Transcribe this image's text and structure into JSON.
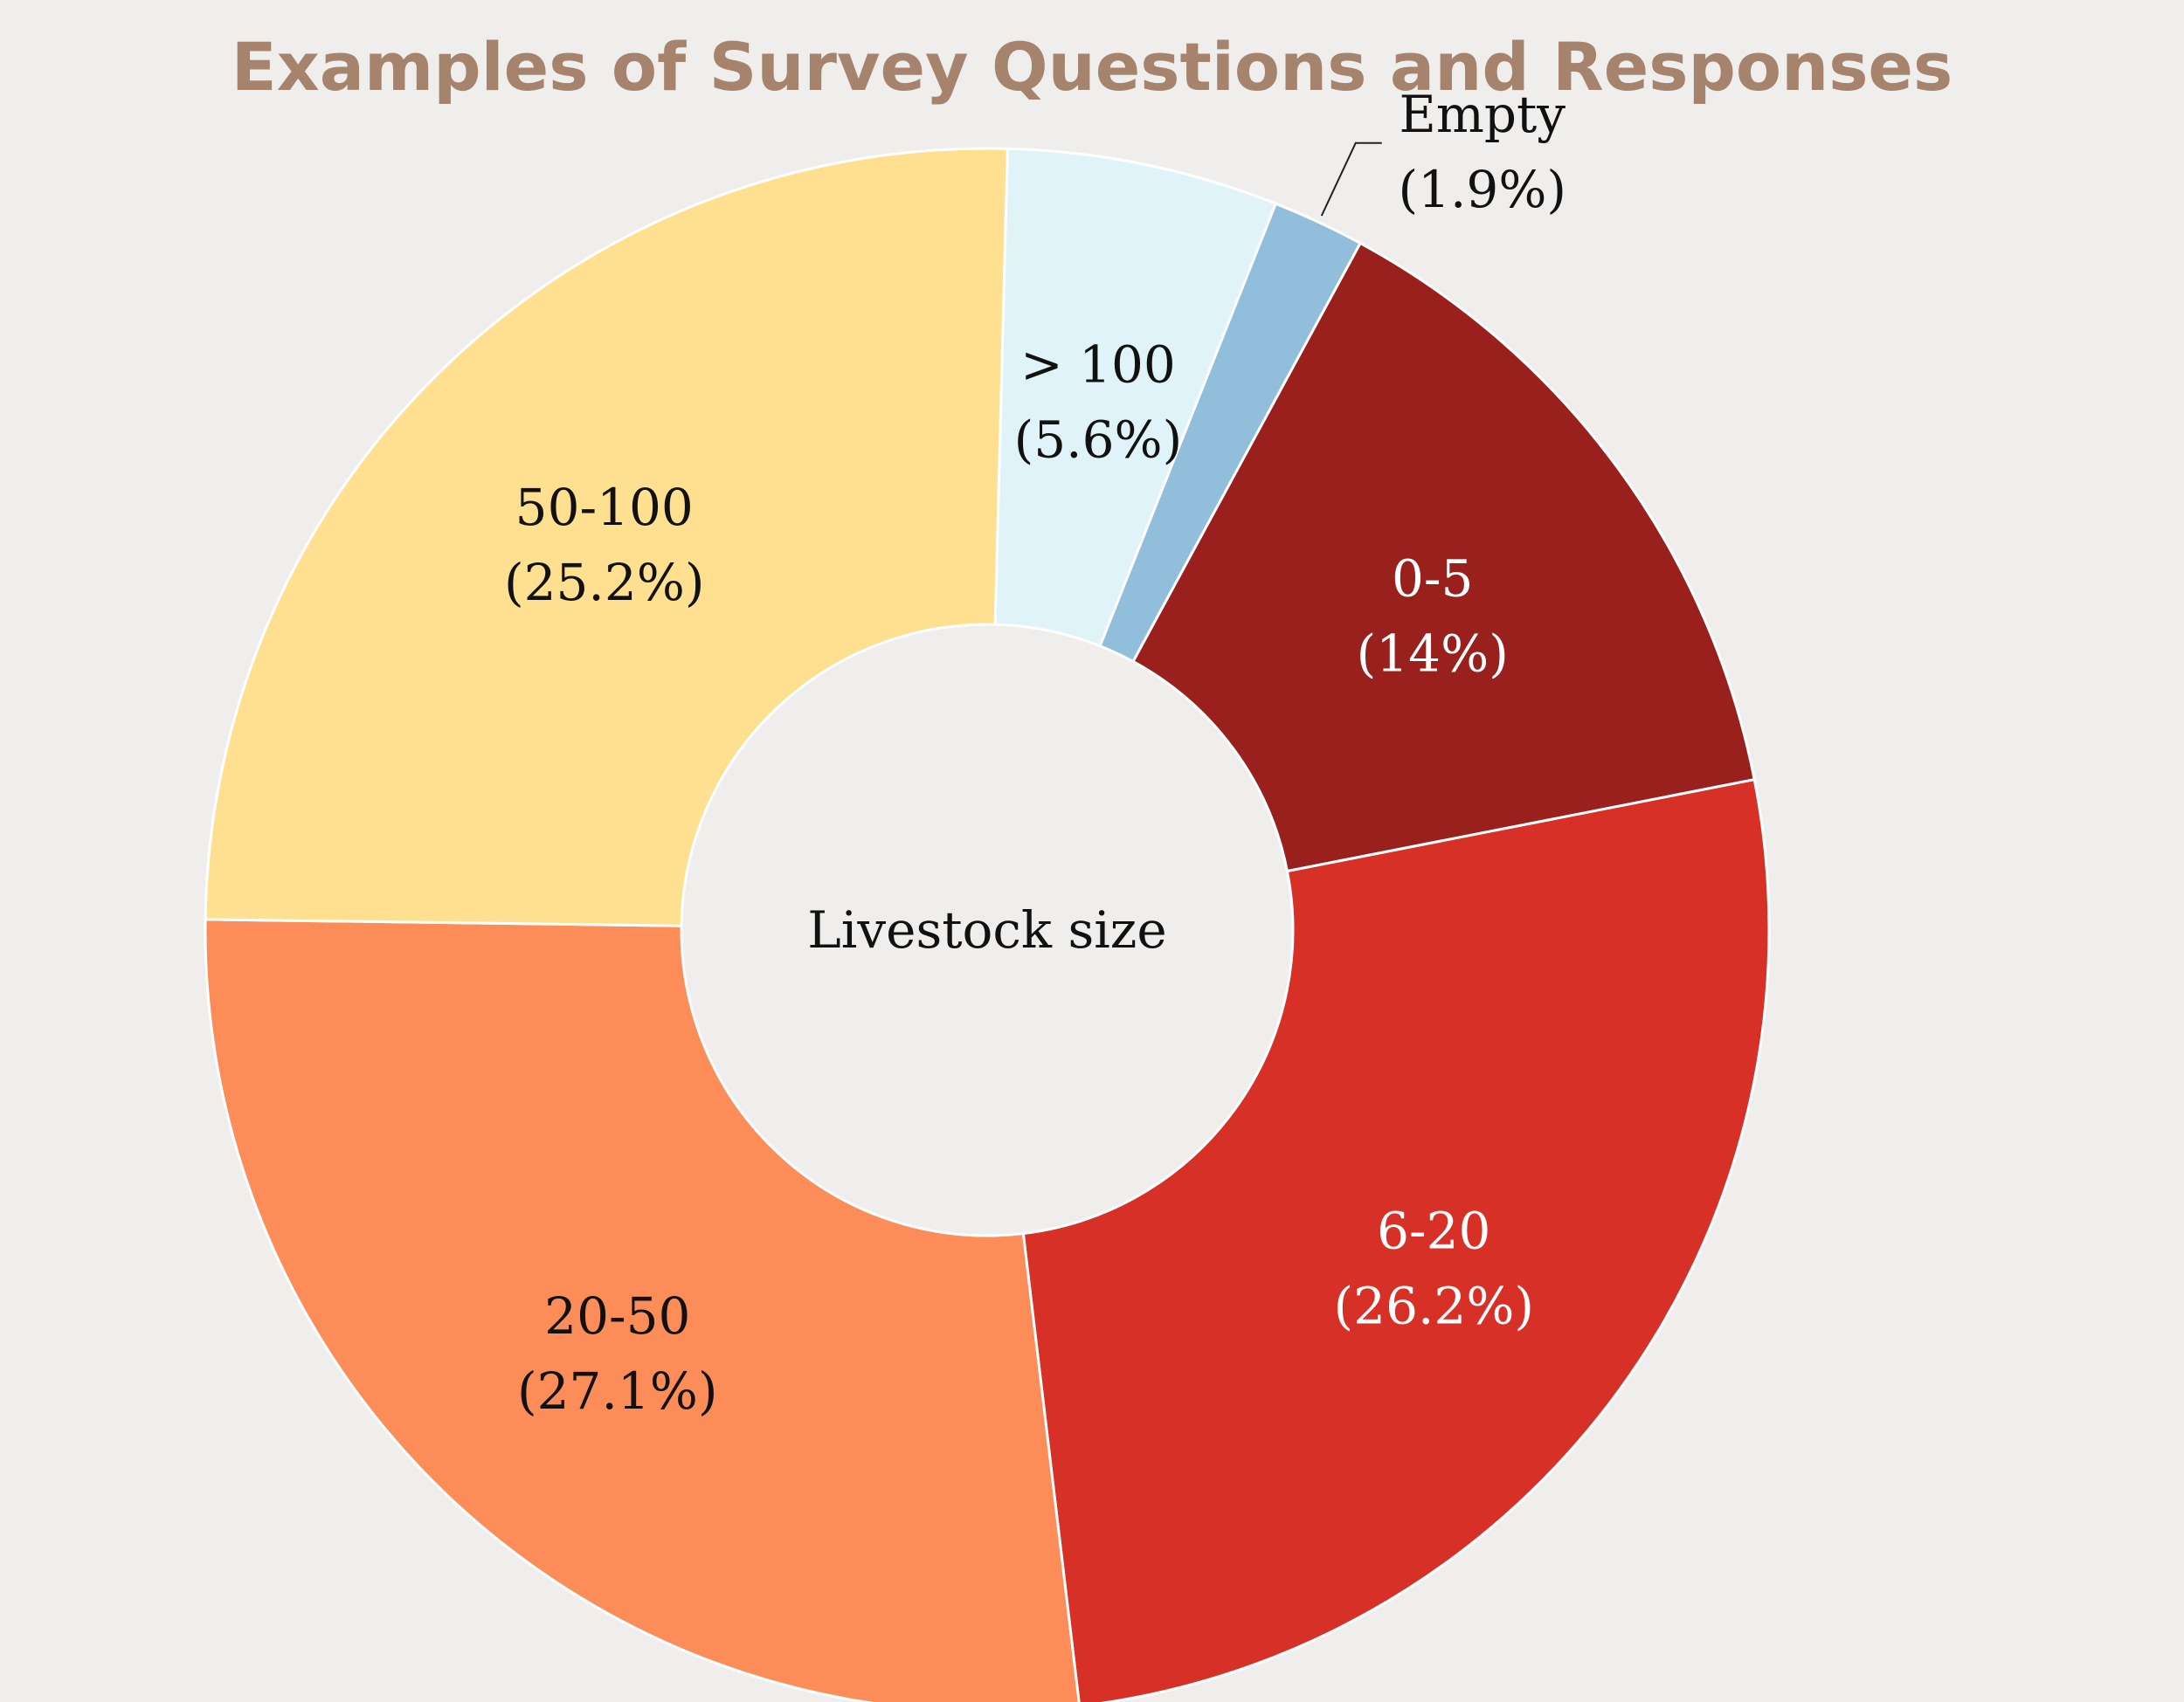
{
  "chart_data": {
    "type": "pie",
    "variant": "donut",
    "title": "Examples of Survey Questions and Responses",
    "center_label": "Livestock size",
    "slices": [
      {
        "label": "0-5",
        "percent_label": "(14%)",
        "value": 14.0,
        "color": "#9a201e",
        "text_color": "#ffffff"
      },
      {
        "label": "6-20",
        "percent_label": "(26.2%)",
        "value": 26.2,
        "color": "#d73027",
        "text_color": "#ffffff"
      },
      {
        "label": "20-50",
        "percent_label": "(27.1%)",
        "value": 27.1,
        "color": "#fc8d59",
        "text_color": "#111111"
      },
      {
        "label": "50-100",
        "percent_label": "(25.2%)",
        "value": 25.2,
        "color": "#fee090",
        "text_color": "#111111"
      },
      {
        "label": "> 100",
        "percent_label": "(5.6%)",
        "value": 5.6,
        "color": "#e0f3f8",
        "text_color": "#111111"
      },
      {
        "label": "Empty",
        "percent_label": "(1.9%)",
        "value": 1.9,
        "color": "#91bfdb",
        "text_color": "#111111"
      }
    ],
    "title_color": "#a6836c",
    "background": "#efeeec"
  }
}
